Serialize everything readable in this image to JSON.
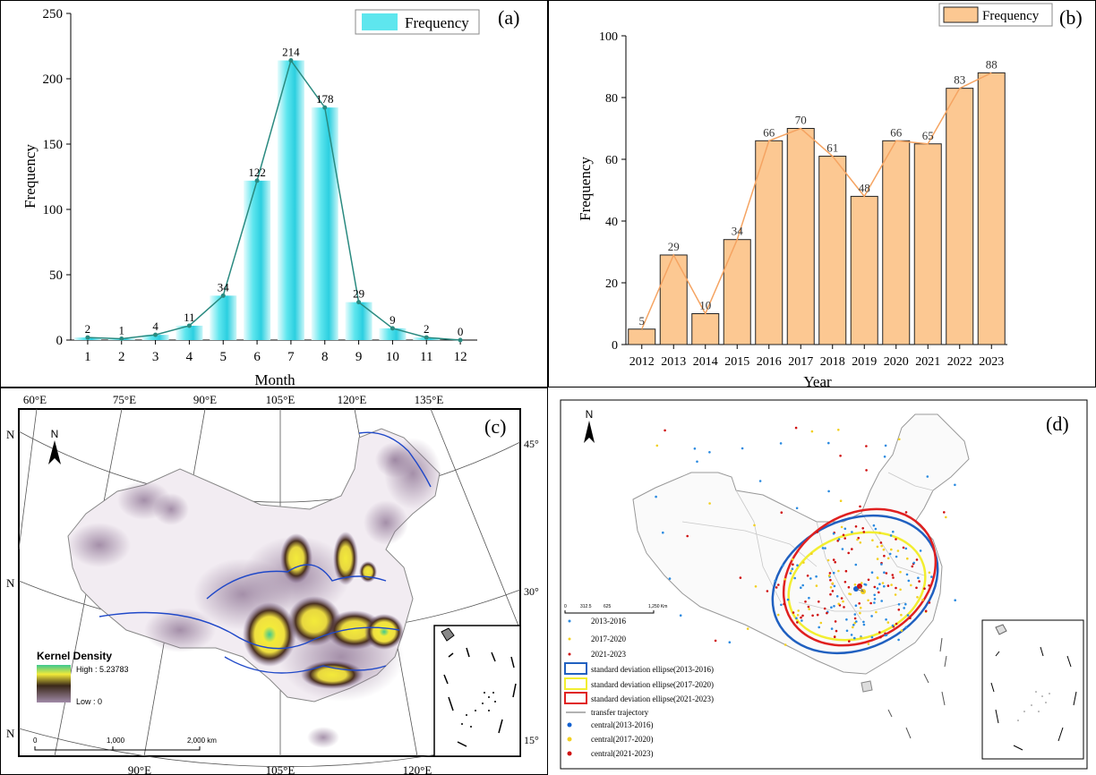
{
  "colors": {
    "bar_a": "#5ee6ee",
    "bar_a_dark": "#2ccfe0",
    "line_a": "#2a8a80",
    "bar_b": "#fcc892",
    "bar_b_edge": "#222222",
    "line_b": "#f5a462",
    "density_low": "#8a7090",
    "density_mid": "#5a4060",
    "density_high": "#f3ea3a",
    "density_peak": "#3dc890",
    "river": "#1f48c8",
    "ellipse_2013_2016": "#2060c0",
    "ellipse_2017_2020": "#f2ee30",
    "ellipse_2021_2023": "#e02020"
  },
  "chart_data": [
    {
      "panel": "a",
      "type": "bar",
      "panel_label": "(a)",
      "legend": "Frequency",
      "xlabel": "Month",
      "ylabel": "Frequency",
      "categories": [
        "1",
        "2",
        "3",
        "4",
        "5",
        "6",
        "7",
        "8",
        "9",
        "10",
        "11",
        "12"
      ],
      "values": [
        2,
        1,
        4,
        11,
        34,
        122,
        214,
        178,
        29,
        9,
        2,
        0
      ],
      "ylim": [
        0,
        250
      ],
      "yticks": [
        0,
        50,
        100,
        150,
        200,
        250
      ],
      "overlay_line": true
    },
    {
      "panel": "b",
      "type": "bar",
      "panel_label": "(b)",
      "legend": "Frequency",
      "xlabel": "Year",
      "ylabel": "Frequency",
      "categories": [
        "2012",
        "2013",
        "2014",
        "2015",
        "2016",
        "2017",
        "2018",
        "2019",
        "2020",
        "2021",
        "2022",
        "2023"
      ],
      "values": [
        5,
        29,
        10,
        34,
        66,
        70,
        61,
        48,
        66,
        65,
        83,
        88
      ],
      "ylim": [
        0,
        100
      ],
      "yticks": [
        0,
        20,
        40,
        60,
        80,
        100
      ],
      "overlay_line": true
    }
  ],
  "map_c": {
    "panel_label": "(c)",
    "north": "N",
    "lon_top": [
      "60°E",
      "75°E",
      "90°E",
      "105°E",
      "120°E",
      "135°E"
    ],
    "lon_bottom": [
      "90°E",
      "105°E",
      "120°E"
    ],
    "lat_left": [
      "N",
      "N",
      "N"
    ],
    "lat_right": [
      "45°",
      "30°",
      "15°"
    ],
    "legend_title": "Kernel Density",
    "legend_high": "High : 5.23783",
    "legend_low": "Low : 0",
    "scale": [
      "0",
      "1,000",
      "2,000 km"
    ]
  },
  "map_d": {
    "panel_label": "(d)",
    "north": "N",
    "scale": [
      "0",
      "312.5",
      "625",
      "1,250 Km"
    ],
    "legend": [
      "2013-2016",
      "2017-2020",
      "2021-2023",
      "standard deviation ellipse(2013-2016)",
      "standard deviation ellipse(2017-2020)",
      "standard deviation ellipse(2021-2023)",
      "transfer trajectory",
      "central(2013-2016)",
      "central(2017-2020)",
      "central(2021-2023)"
    ]
  }
}
